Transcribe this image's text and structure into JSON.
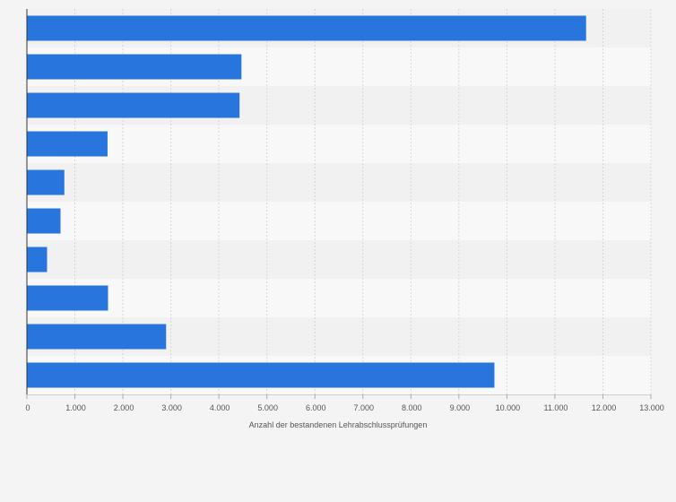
{
  "colors": {
    "page_background": "#f4f4f4",
    "bar": "#2876dd",
    "band_dark": "#f1f1f1",
    "band_light": "#f8f8f8",
    "grid": "#d6d6d6",
    "axis": "#333333",
    "tick_text": "#555555"
  },
  "chart_data": {
    "type": "bar",
    "orientation": "horizontal",
    "categories": [
      "",
      "",
      "",
      "",
      "",
      "",
      "",
      "",
      "",
      ""
    ],
    "values": [
      11650,
      4470,
      4430,
      1680,
      780,
      700,
      420,
      1690,
      2900,
      9740
    ],
    "title": "",
    "xlabel": "Anzahl der bestandenen Lehrabschlussprüfungen",
    "ylabel": "",
    "xlim": [
      0,
      13000
    ],
    "x_ticks": [
      0,
      1000,
      2000,
      3000,
      4000,
      5000,
      6000,
      7000,
      8000,
      9000,
      10000,
      11000,
      12000,
      13000
    ],
    "x_tick_labels": [
      "0",
      "1.000",
      "2.000",
      "3.000",
      "4.000",
      "5.000",
      "6.000",
      "7.000",
      "8.000",
      "9.000",
      "10.000",
      "11.000",
      "12.000",
      "13.000"
    ],
    "grid": true,
    "legend": "none"
  }
}
